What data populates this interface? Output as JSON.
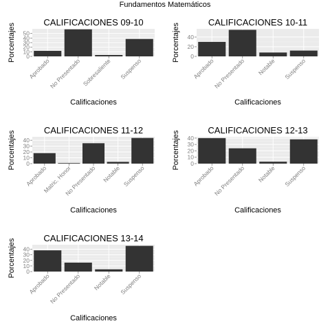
{
  "figure": {
    "title": "Fundamentos Matemáticos",
    "colors": {
      "bar": "#333333",
      "panel": "#ebebeb",
      "grid": "#ffffff",
      "axis_text": "#7f7f7f",
      "label": "#000000"
    }
  },
  "chart_data": [
    {
      "type": "bar",
      "title": "CALIFICACIONES 09-10",
      "xlabel": "Calificaciones",
      "ylabel": "Porcentajes",
      "categories": [
        "Aprobado",
        "No Presentado",
        "Sobresaliente",
        "Suspenso"
      ],
      "values": [
        12,
        59,
        3,
        38
      ],
      "ylim": [
        0,
        60
      ],
      "yticks": [
        0,
        10,
        20,
        30,
        40,
        50
      ],
      "grid": true
    },
    {
      "type": "bar",
      "title": "CALIFICACIONES 10-11",
      "xlabel": "Calificaciones",
      "ylabel": "Porcentajes",
      "categories": [
        "Aprobado",
        "No Presentado",
        "Notable",
        "Suspenso"
      ],
      "values": [
        30,
        55,
        8,
        12
      ],
      "ylim": [
        0,
        57
      ],
      "yticks": [
        0,
        20,
        40
      ],
      "grid": true
    },
    {
      "type": "bar",
      "title": "CALIFICACIONES 11-12",
      "xlabel": "Calificaciones",
      "ylabel": "Porcentajes",
      "categories": [
        "Aprobado",
        "Matric. Honor",
        "No Presentado",
        "Notable",
        "Suspenso"
      ],
      "values": [
        18,
        1,
        35,
        3,
        44
      ],
      "ylim": [
        0,
        46
      ],
      "yticks": [
        0,
        10,
        20,
        30,
        40
      ],
      "grid": true
    },
    {
      "type": "bar",
      "title": "CALIFICACIONES 12-13",
      "xlabel": "Calificaciones",
      "ylabel": "Porcentajes",
      "categories": [
        "Aprobado",
        "No Presentado",
        "Notable",
        "Suspenso"
      ],
      "values": [
        40,
        24,
        3,
        38
      ],
      "ylim": [
        0,
        42
      ],
      "yticks": [
        0,
        10,
        20,
        30,
        40
      ],
      "grid": true
    },
    {
      "type": "bar",
      "title": "CALIFICACIONES 13-14",
      "xlabel": "Calificaciones",
      "ylabel": "Porcentajes",
      "categories": [
        "Aprobado",
        "No Presentado",
        "Notable",
        "Suspenso"
      ],
      "values": [
        38,
        16,
        4,
        46
      ],
      "ylim": [
        0,
        48
      ],
      "yticks": [
        0,
        10,
        20,
        30,
        40
      ],
      "grid": true
    }
  ]
}
